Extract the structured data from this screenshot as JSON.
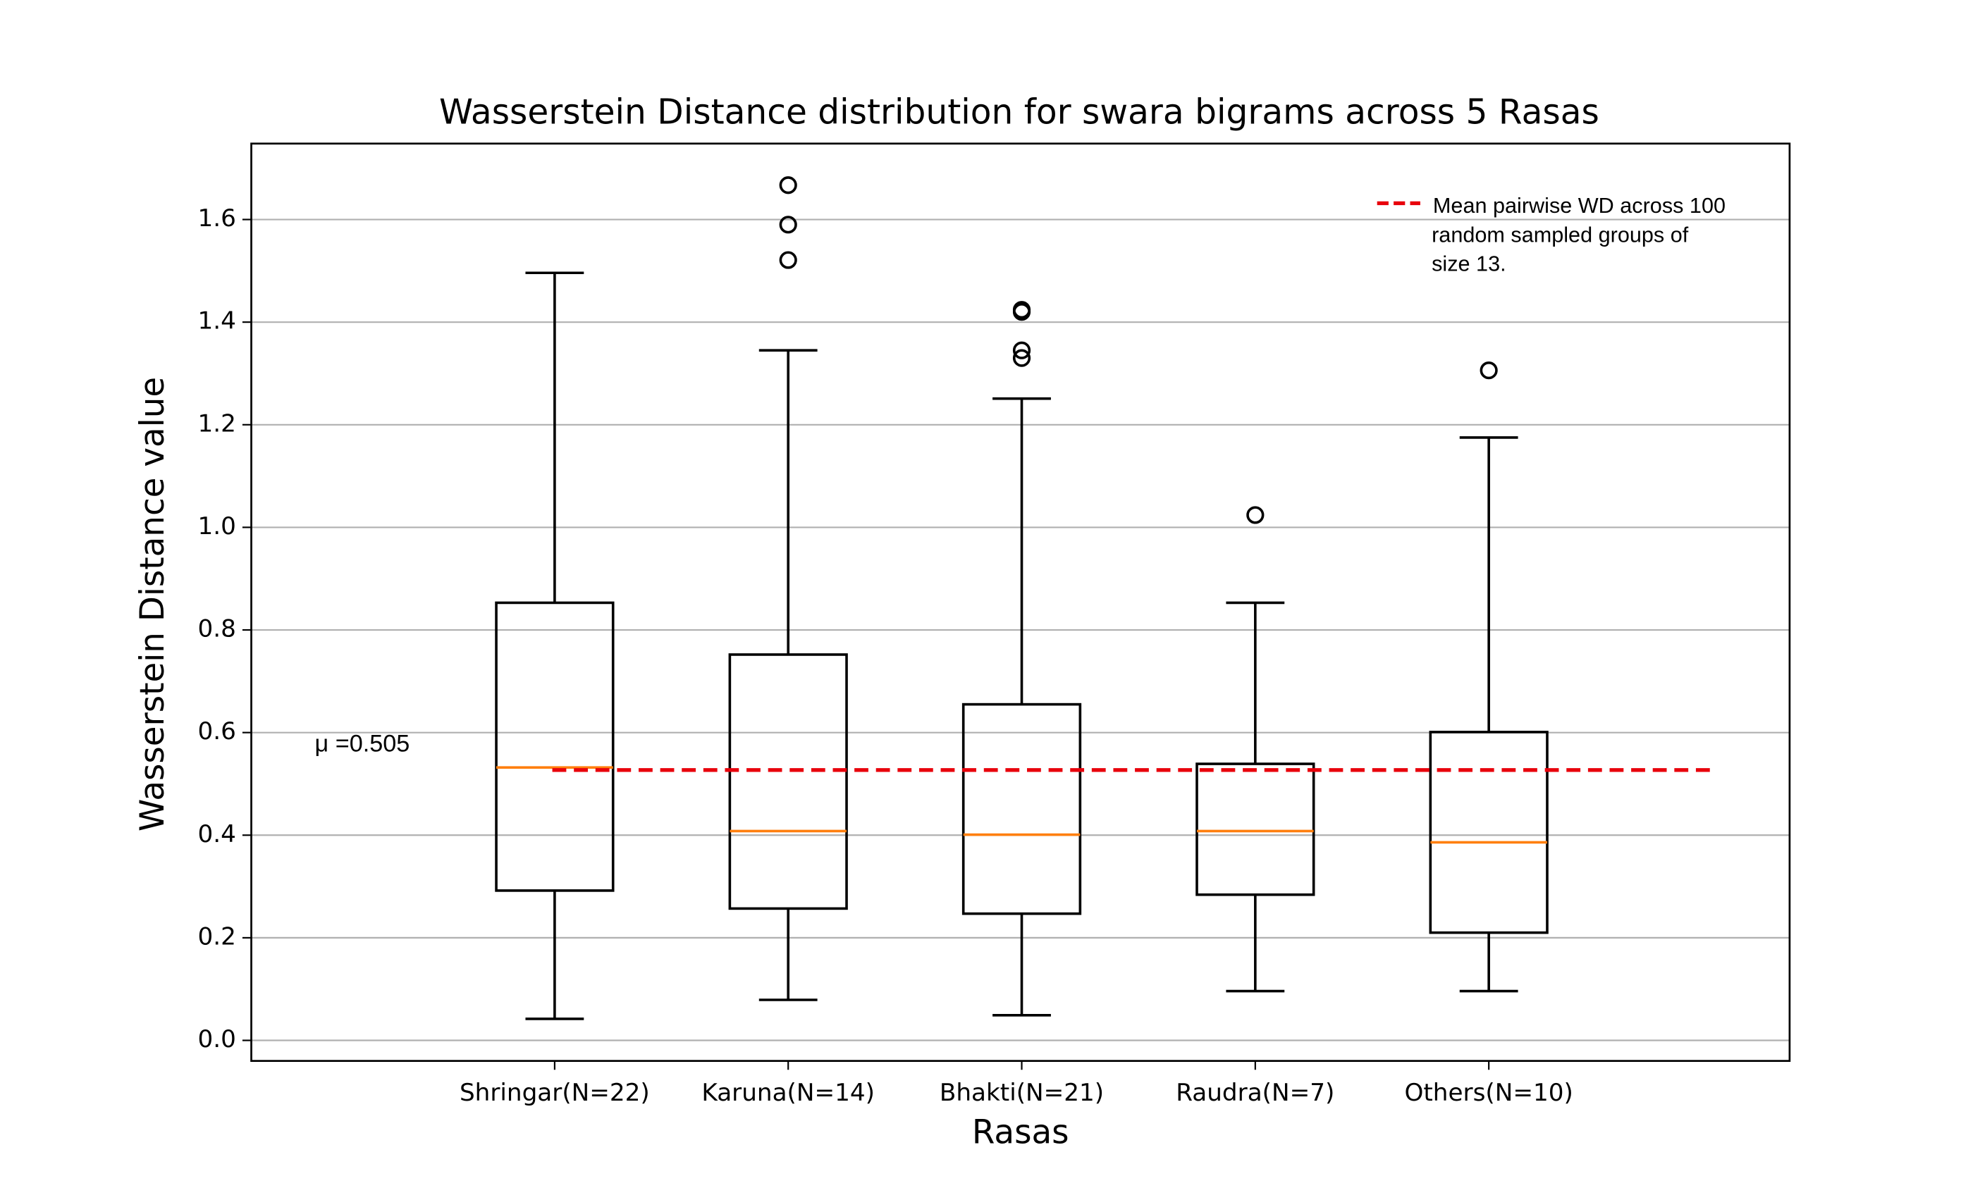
{
  "chart_data": {
    "type": "box",
    "title": "Wasserstein Distance distribution for swara bigrams across 5 Rasas",
    "xlabel": "Rasas",
    "ylabel": "Wasserstein Distance value",
    "categories": [
      "Shringar(N=22)",
      "Karuna(N=14)",
      "Bhakti(N=21)",
      "Raudra(N=7)",
      "Others(N=10)"
    ],
    "boxes": [
      {
        "whislo": 0.042,
        "q1": 0.292,
        "med": 0.532,
        "q3": 0.853,
        "whishi": 1.496,
        "fliers": []
      },
      {
        "whislo": 0.079,
        "q1": 0.257,
        "med": 0.408,
        "q3": 0.752,
        "whishi": 1.345,
        "fliers": [
          1.667,
          1.59,
          1.521
        ]
      },
      {
        "whislo": 0.049,
        "q1": 0.247,
        "med": 0.401,
        "q3": 0.655,
        "whishi": 1.251,
        "fliers": [
          1.424,
          1.42,
          1.345,
          1.33
        ]
      },
      {
        "whislo": 0.096,
        "q1": 0.284,
        "med": 0.408,
        "q3": 0.539,
        "whishi": 0.853,
        "fliers": [
          1.024
        ]
      },
      {
        "whislo": 0.096,
        "q1": 0.21,
        "med": 0.386,
        "q3": 0.601,
        "whishi": 1.175,
        "fliers": [
          1.306
        ]
      }
    ],
    "box_color": "#000000",
    "median_color": "#ff7f0e",
    "reference_line": {
      "value": 0.527,
      "color": "#e8000b",
      "dashed": true,
      "legend_lines": [
        "Mean pairwise WD across 100",
        "random sampled groups of",
        "size 13."
      ]
    },
    "annotation": "μ =0.505",
    "ylim": [
      -0.04,
      1.748
    ],
    "yticks": [
      {
        "value": 0,
        "label": "0.0"
      },
      0.2,
      0.4,
      0.6,
      0.8,
      {
        "value": 1,
        "label": "1.0"
      },
      1.2,
      1.4,
      1.6
    ],
    "grid": true,
    "legend_position": "upper right"
  }
}
